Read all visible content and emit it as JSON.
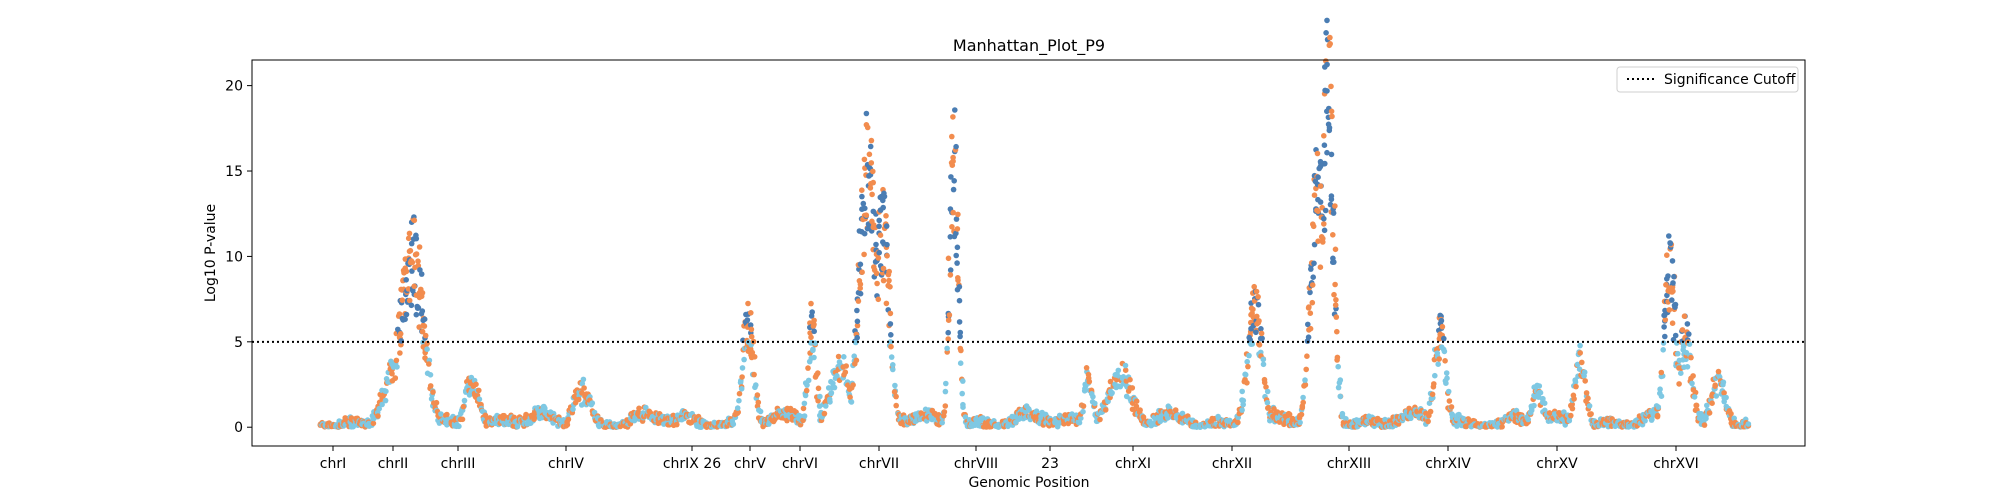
{
  "chart_data": {
    "type": "scatter",
    "title": "Manhattan_Plot_P9",
    "xlabel": "Genomic Position",
    "ylabel": "Log10 P-value",
    "ylim": [
      -1.1,
      21.5
    ],
    "yticks": [
      0,
      5,
      10,
      15,
      20
    ],
    "grid": false,
    "legend": {
      "placement": "top-right",
      "entries": [
        "Significance Cutoff"
      ]
    },
    "significance_cutoff": 5,
    "colors": {
      "blue_dark": "#4a7db3",
      "orange": "#f28c4e",
      "light_blue": "#7ec8e3",
      "cutoff_line": "#000000"
    },
    "x_categories": [
      "chrI",
      "chrII",
      "chrIII",
      "chrIV",
      "chrIX 26",
      "chrV",
      "chrVI",
      "chrVII",
      "chrVIII",
      "23",
      "chrXI",
      "chrXII",
      "chrXIII",
      "chrXIV",
      "chrXV",
      "chrXVI"
    ],
    "peaks": [
      {
        "chromosome": "chrII",
        "max_log10p": 10.5
      },
      {
        "chromosome": "chrV",
        "max_log10p": 6.3
      },
      {
        "chromosome": "chrVI",
        "max_log10p": 6.0
      },
      {
        "chromosome": "chrVII",
        "max_log10p": 15.4
      },
      {
        "chromosome": "chrVIII",
        "max_log10p": 16.0
      },
      {
        "chromosome": "chrXI",
        "max_log10p": 5.5
      },
      {
        "chromosome": "chrXII",
        "max_log10p": 7.0
      },
      {
        "chromosome": "chrXIII",
        "max_log10p": 20.4
      },
      {
        "chromosome": "chrXIV",
        "max_log10p": 5.8
      },
      {
        "chromosome": "chrXVI",
        "max_log10p": 9.6
      }
    ]
  }
}
